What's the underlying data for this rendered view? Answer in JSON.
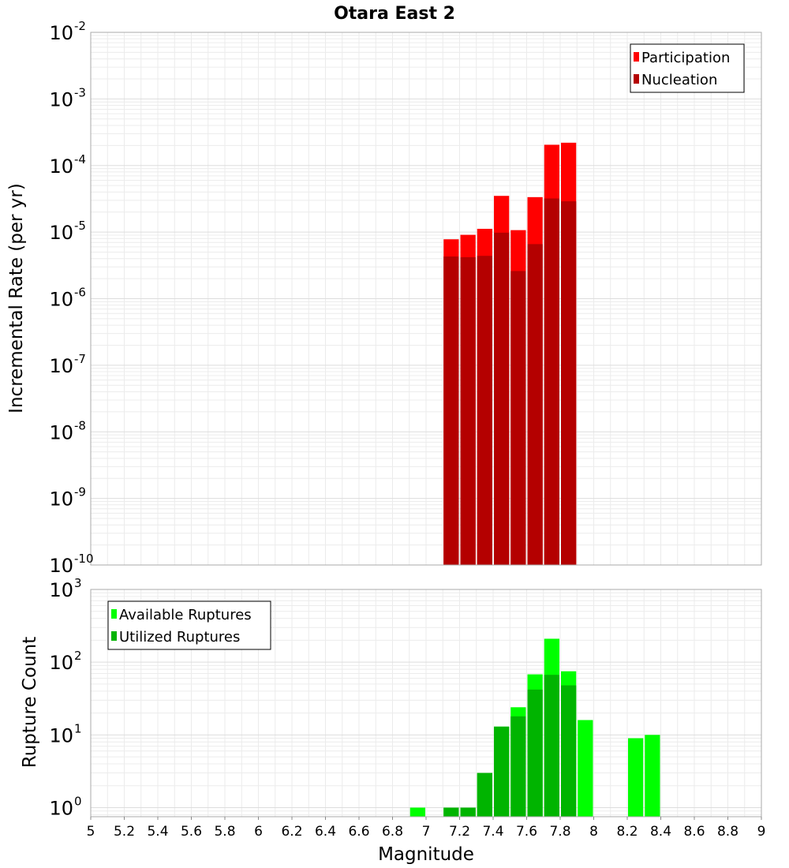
{
  "chart_data": [
    {
      "type": "bar",
      "title": "Otara East 2",
      "ylabel": "Incremental Rate (per yr)",
      "yscale": "log",
      "ylim": [
        1e-10,
        0.01
      ],
      "ytick_exponents": [
        "-10",
        "-9",
        "-8",
        "-7",
        "-6",
        "-5",
        "-4",
        "-3",
        "-2"
      ],
      "xlim": [
        5,
        9
      ],
      "bin_width": 0.1,
      "legend_position": "top-right",
      "grid": true,
      "series": [
        {
          "name": "Participation",
          "color": "#ff0000",
          "x": [
            7.15,
            7.25,
            7.35,
            7.45,
            7.55,
            7.65,
            7.75,
            7.85
          ],
          "values": [
            7.8e-06,
            9.1e-06,
            1.12e-05,
            3.5e-05,
            1.07e-05,
            3.35e-05,
            0.000205,
            0.00022
          ]
        },
        {
          "name": "Nucleation",
          "color": "#b40000",
          "x": [
            7.15,
            7.25,
            7.35,
            7.45,
            7.55,
            7.65,
            7.75,
            7.85
          ],
          "values": [
            4.3e-06,
            4.2e-06,
            4.4e-06,
            9.8e-06,
            2.6e-06,
            6.6e-06,
            3.2e-05,
            2.9e-05
          ]
        }
      ]
    },
    {
      "type": "bar",
      "ylabel": "Rupture Count",
      "xlabel": "Magnitude",
      "yscale": "log",
      "ylim": [
        0.75,
        1000
      ],
      "ytick_exponents": [
        "0",
        "1",
        "2",
        "3"
      ],
      "xlim": [
        5,
        9
      ],
      "xticks": [
        "5",
        "5.2",
        "5.4",
        "5.6",
        "5.8",
        "6",
        "6.2",
        "6.4",
        "6.6",
        "6.8",
        "7",
        "7.2",
        "7.4",
        "7.6",
        "7.8",
        "8",
        "8.2",
        "8.4",
        "8.6",
        "8.8",
        "9"
      ],
      "bin_width": 0.1,
      "legend_position": "top-left",
      "grid": true,
      "series": [
        {
          "name": "Available Ruptures",
          "color": "#00ff00",
          "x": [
            6.95,
            7.15,
            7.25,
            7.35,
            7.45,
            7.55,
            7.65,
            7.75,
            7.85,
            7.95,
            8.25,
            8.35
          ],
          "values": [
            1,
            1,
            1,
            3,
            13,
            24,
            68,
            210,
            75,
            16,
            9,
            10
          ]
        },
        {
          "name": "Utilized Ruptures",
          "color": "#00b400",
          "x": [
            7.15,
            7.25,
            7.35,
            7.45,
            7.55,
            7.65,
            7.75,
            7.85
          ],
          "values": [
            1,
            1,
            3,
            13,
            18,
            42,
            67,
            48
          ]
        }
      ]
    }
  ]
}
